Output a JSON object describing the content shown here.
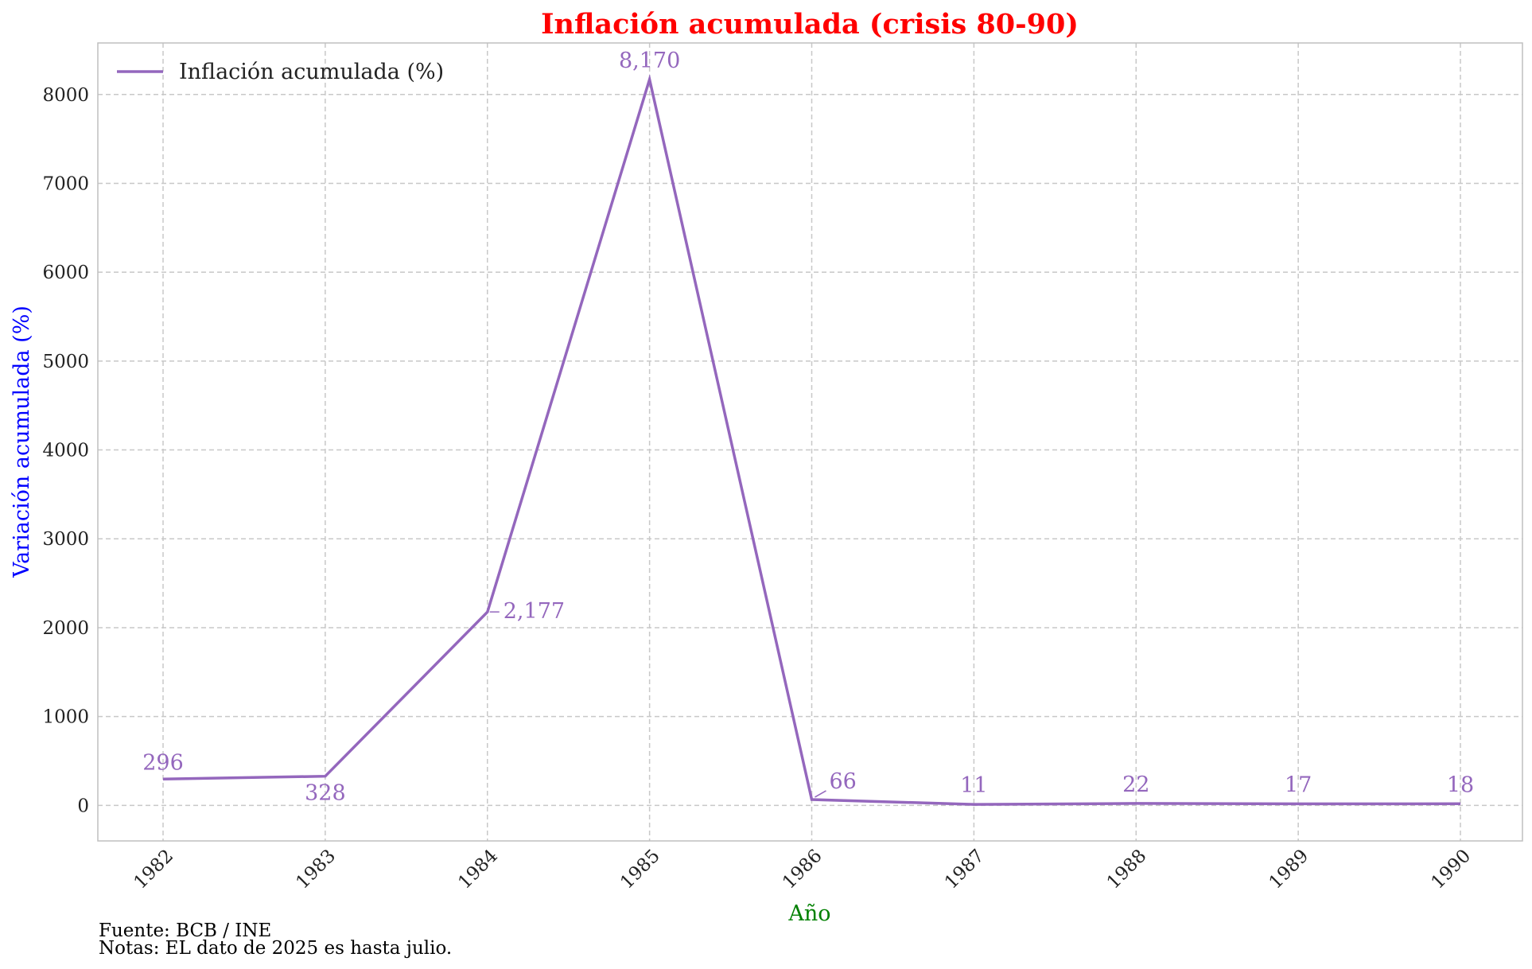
{
  "colors": {
    "line": "#9467bd",
    "title": "#ff0000",
    "ylabel": "#0000ff",
    "xlabel": "#008000",
    "grid": "#c8c8c8",
    "axis": "#bfbfbf",
    "text": "#222222"
  },
  "chart_data": {
    "type": "line",
    "title": "Inflación acumulada (crisis 80-90)",
    "xlabel": "Año",
    "ylabel": "Variación acumulada (%)",
    "categories": [
      "1982",
      "1983",
      "1984",
      "1985",
      "1986",
      "1987",
      "1988",
      "1989",
      "1990"
    ],
    "series": [
      {
        "name": "Inflación acumulada (%)",
        "values": [
          296,
          328,
          2177,
          8170,
          66,
          11,
          22,
          17,
          18
        ],
        "labels": [
          "296",
          "328",
          "2,177",
          "8,170",
          "66",
          "11",
          "22",
          "17",
          "18"
        ]
      }
    ],
    "yticks": [
      0,
      1000,
      2000,
      3000,
      4000,
      5000,
      6000,
      7000,
      8000
    ],
    "ylim": [
      -400,
      8580
    ],
    "grid": true,
    "legend_position": "top-left"
  },
  "footnotes": {
    "source": "Fuente: BCB / INE",
    "notes": "Notas: EL dato de 2025 es hasta julio."
  }
}
